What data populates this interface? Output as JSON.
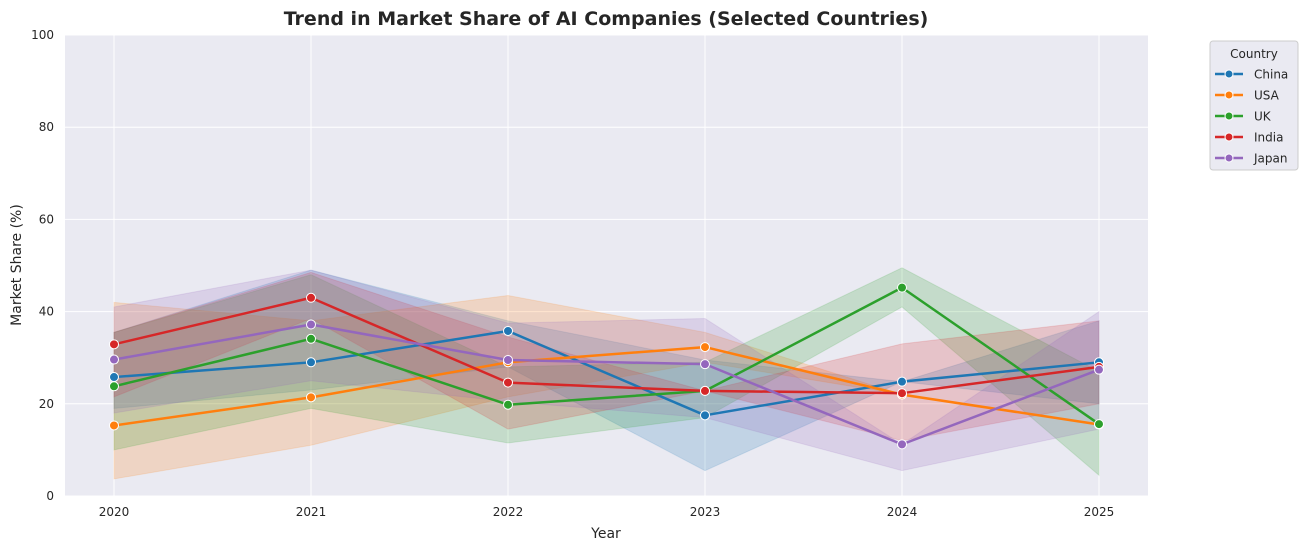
{
  "chart_data": {
    "type": "line",
    "title": "Trend in Market Share of AI Companies (Selected Countries)",
    "xlabel": "Year",
    "ylabel": "Market Share (%)",
    "x": [
      "2020",
      "2021",
      "2022",
      "2023",
      "2024",
      "2025"
    ],
    "ylim": [
      0,
      100
    ],
    "yticks": [
      0,
      20,
      40,
      60,
      80,
      100
    ],
    "grid": true,
    "legend": {
      "title": "Country",
      "placement": "outside top-right"
    },
    "series": [
      {
        "name": "China",
        "color": "#1f77b4",
        "values": [
          25.8,
          29.0,
          35.8,
          17.5,
          24.8,
          29.0
        ],
        "ci_low": [
          19.0,
          23.0,
          28.0,
          5.5,
          24.8,
          20.0
        ],
        "ci_high": [
          35.5,
          49.0,
          38.0,
          29.5,
          24.8,
          38.0
        ]
      },
      {
        "name": "USA",
        "color": "#ff7f0e",
        "values": [
          15.3,
          21.4,
          29.0,
          32.3,
          22.0,
          15.5
        ],
        "ci_low": [
          3.7,
          11.0,
          21.5,
          29.0,
          22.0,
          15.5
        ],
        "ci_high": [
          42.0,
          38.0,
          43.5,
          35.5,
          22.0,
          15.5
        ]
      },
      {
        "name": "UK",
        "color": "#2ca02c",
        "values": [
          23.8,
          34.1,
          19.8,
          22.8,
          45.2,
          15.6
        ],
        "ci_low": [
          10.0,
          19.0,
          11.5,
          17.0,
          41.0,
          4.5
        ],
        "ci_high": [
          35.5,
          48.0,
          28.0,
          29.0,
          49.5,
          27.0
        ]
      },
      {
        "name": "India",
        "color": "#d62728",
        "values": [
          32.9,
          43.0,
          24.6,
          22.8,
          22.3,
          28.0
        ],
        "ci_low": [
          21.5,
          38.5,
          14.5,
          22.8,
          12.0,
          20.0
        ],
        "ci_high": [
          35.5,
          48.5,
          34.5,
          22.8,
          33.0,
          38.0
        ]
      },
      {
        "name": "Japan",
        "color": "#9467bd",
        "values": [
          29.6,
          37.2,
          29.5,
          28.6,
          11.2,
          27.4
        ],
        "ci_low": [
          18.0,
          25.0,
          20.5,
          17.0,
          5.5,
          14.5
        ],
        "ci_high": [
          41.0,
          49.0,
          37.5,
          38.5,
          11.2,
          40.0
        ]
      }
    ]
  }
}
